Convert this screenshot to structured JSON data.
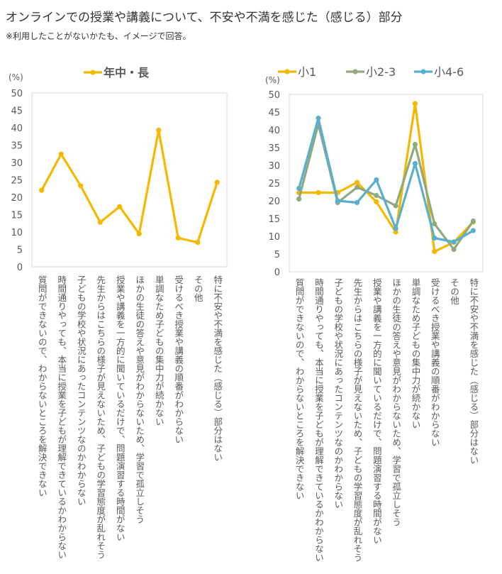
{
  "title": "オンラインでの授業や講義について、不安や不満を感じた（感じる）部分",
  "note": "※利用したことがないかたも、イメージで回答。",
  "chart_data": [
    {
      "type": "line",
      "unit_label": "(%)",
      "ylim": [
        0,
        50
      ],
      "yticks": [
        0,
        5,
        10,
        15,
        20,
        25,
        30,
        35,
        40,
        45,
        50
      ],
      "grid": false,
      "legend": "top",
      "categories": [
        "質問ができないので、わからないところを解決できない",
        "時間通りやっても、本当に授業を子どもが理解できているかわからない",
        "子どもの学校や状況にあったコンテンツなのかわからない",
        "先生からはこちらの様子が見えないため、子どもの学習態度が乱れそう",
        "授業や講義を一方的に聞いているだけで、問題演習する時間がない",
        "ほかの生徒の答えや意見がわからないため、学習で孤立しそう",
        "単調なため子どもの集中力が続かない",
        "受けるべき授業や講義の順番がわからない",
        "その他",
        "特に不安や不満を感じた（感じる）部分はない"
      ],
      "series": [
        {
          "name": "年中・長",
          "color": "#f5b800",
          "values": [
            22.0,
            32.4,
            23.3,
            12.8,
            17.3,
            9.5,
            39.3,
            8.3,
            7.0,
            24.3
          ]
        }
      ]
    },
    {
      "type": "line",
      "unit_label": "(%)",
      "ylim": [
        0,
        50
      ],
      "yticks": [
        0,
        5,
        10,
        15,
        20,
        25,
        30,
        35,
        40,
        45,
        50
      ],
      "grid": false,
      "legend": "top",
      "categories": [
        "質問ができないので、わからないところを解決できない",
        "時間通りやっても、本当に授業を子どもが理解できているかわからない",
        "子どもの学校や状況にあったコンテンツなのかわからない",
        "先生からはこちらの様子が見えないため、子どもの学習態度が乱れそう",
        "授業や講義を一方的に聞いているだけで、問題演習する時間がない",
        "ほかの生徒の答えや意見がわからないため、学習で孤立しそう",
        "単調なため子どもの集中力が続かない",
        "受けるべき授業や講義の順番がわからない",
        "その他",
        "特に不安や不満を感じた（感じる）部分はない"
      ],
      "series": [
        {
          "name": "小1",
          "color": "#f5b800",
          "values": [
            22.3,
            22.3,
            22.3,
            25.2,
            19.7,
            11.2,
            47.4,
            5.7,
            8.3,
            14.0
          ]
        },
        {
          "name": "小2-3",
          "color": "#8faa7c",
          "values": [
            20.5,
            41.6,
            19.5,
            23.8,
            21.5,
            18.6,
            35.9,
            13.5,
            6.3,
            14.3
          ]
        },
        {
          "name": "小4-6",
          "color": "#5aaed0",
          "values": [
            23.5,
            43.3,
            20.0,
            19.5,
            25.9,
            12.2,
            30.5,
            9.5,
            8.4,
            11.6
          ]
        }
      ]
    }
  ]
}
